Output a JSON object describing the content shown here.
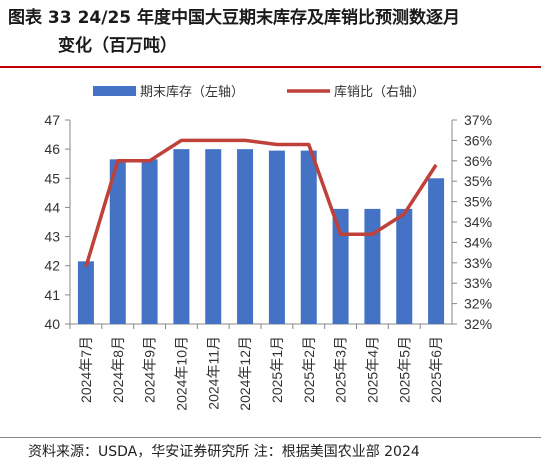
{
  "title": {
    "label": "图表 33",
    "line1": "24/25 年度中国大豆期末库存及库销比预测数逐月",
    "line2": "变化（百万吨）"
  },
  "source": "资料来源：USDA，华安证券研究所 注：根据美国农业部 2024",
  "chart_data": {
    "type": "bar",
    "categories": [
      "2024年7月",
      "2024年8月",
      "2024年9月",
      "2024年10月",
      "2024年11月",
      "2024年12月",
      "2025年1月",
      "2025年2月",
      "2025年3月",
      "2025年4月",
      "2025年5月",
      "2025年6月"
    ],
    "series": [
      {
        "name": "期末库存（左轴）",
        "type": "bar",
        "axis": "left",
        "color": "#4472c4",
        "values": [
          42.15,
          45.65,
          45.65,
          46.0,
          46.0,
          46.0,
          45.95,
          45.95,
          43.95,
          43.95,
          43.95,
          45.0
        ]
      },
      {
        "name": "库销比（右轴）",
        "type": "line",
        "axis": "right",
        "color": "#c0403a",
        "values": [
          33.4,
          36.0,
          36.0,
          36.5,
          36.5,
          36.5,
          36.4,
          36.4,
          34.2,
          34.2,
          34.7,
          35.9
        ]
      }
    ],
    "y_left": {
      "min": 40,
      "max": 47,
      "ticks": [
        "40",
        "41",
        "42",
        "43",
        "44",
        "45",
        "46",
        "47"
      ]
    },
    "y_right": {
      "min": 32,
      "max": 37,
      "ticks": [
        "32%",
        "32%",
        "33%",
        "33%",
        "34%",
        "34%",
        "35%",
        "35%",
        "36%",
        "36%",
        "37%"
      ]
    },
    "legend_position": "top",
    "grid": false
  }
}
